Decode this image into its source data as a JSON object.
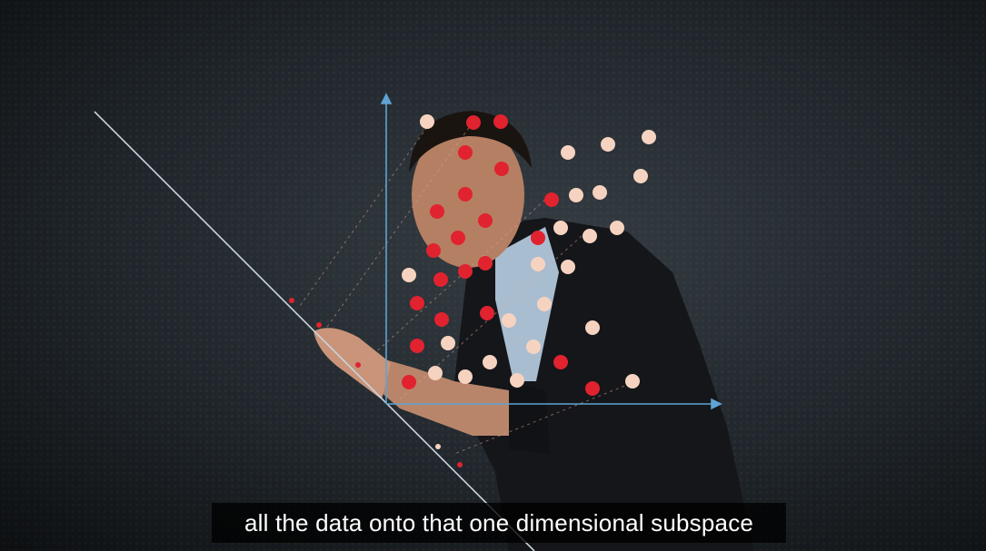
{
  "video": {
    "caption": "all the data onto that one dimensional subspace"
  },
  "colors": {
    "red_points": "#e0232f",
    "light_points": "#f6d3c0",
    "axis": "#5fa3d3",
    "subspace_line": "#c9d6df"
  },
  "icons": {
    "presenter": "person-figure",
    "points": "circle"
  }
}
